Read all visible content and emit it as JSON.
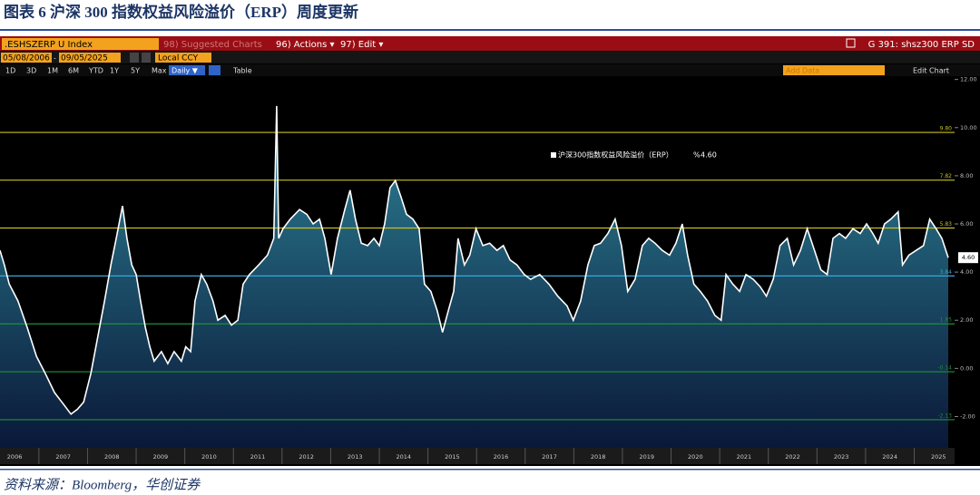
{
  "document": {
    "title": "图表 6  沪深 300 指数权益风险溢价（ERP）周度更新",
    "source": "资料来源：Bloomberg，华创证券"
  },
  "toolbar": {
    "ticker": ".ESHSZERP U Index",
    "suggested": "98) Suggested Charts",
    "actions": "96) Actions ▾",
    "edit": "97) Edit ▾",
    "chart_id": "G 391: shsz300 ERP SD",
    "start_date": "05/08/2006",
    "end_date": "09/05/2025",
    "currency": "Local CCY",
    "periods": [
      "1D",
      "3D",
      "1M",
      "6M",
      "YTD",
      "1Y",
      "5Y",
      "Max"
    ],
    "frequency": "Daily ▼",
    "table": "Table",
    "add_data": "Add Data",
    "edit_chart": "Edit Chart"
  },
  "chart_data": {
    "type": "line",
    "x": [
      2006.2,
      2006.29,
      2006.39,
      2006.57,
      2006.76,
      2006.95,
      2007.13,
      2007.32,
      2007.51,
      2007.66,
      2007.79,
      2007.92,
      2008.07,
      2008.21,
      2008.35,
      2008.48,
      2008.59,
      2008.72,
      2008.81,
      2008.91,
      2009.0,
      2009.09,
      2009.19,
      2009.28,
      2009.37,
      2009.52,
      2009.65,
      2009.78,
      2009.93,
      2010.02,
      2010.12,
      2010.21,
      2010.34,
      2010.45,
      2010.58,
      2010.68,
      2010.83,
      2010.96,
      2011.09,
      2011.2,
      2011.33,
      2011.52,
      2011.7,
      2011.83,
      2011.89,
      2011.93,
      2012.02,
      2012.17,
      2012.36,
      2012.51,
      2012.64,
      2012.77,
      2012.88,
      2013.01,
      2013.14,
      2013.29,
      2013.4,
      2013.51,
      2013.63,
      2013.76,
      2013.89,
      2014.0,
      2014.11,
      2014.22,
      2014.33,
      2014.45,
      2014.56,
      2014.69,
      2014.82,
      2014.93,
      2015.06,
      2015.19,
      2015.3,
      2015.42,
      2015.53,
      2015.62,
      2015.75,
      2015.86,
      2015.99,
      2016.13,
      2016.27,
      2016.42,
      2016.55,
      2016.69,
      2016.83,
      2016.98,
      2017.11,
      2017.3,
      2017.49,
      2017.67,
      2017.86,
      2017.99,
      2018.14,
      2018.29,
      2018.42,
      2018.55,
      2018.7,
      2018.85,
      2018.98,
      2019.11,
      2019.26,
      2019.41,
      2019.54,
      2019.67,
      2019.82,
      2019.97,
      2020.1,
      2020.23,
      2020.34,
      2020.47,
      2020.6,
      2020.75,
      2020.9,
      2021.03,
      2021.13,
      2021.27,
      2021.41,
      2021.54,
      2021.69,
      2021.83,
      2021.96,
      2022.1,
      2022.24,
      2022.39,
      2022.52,
      2022.66,
      2022.8,
      2022.95,
      2023.08,
      2023.21,
      2023.33,
      2023.46,
      2023.59,
      2023.74,
      2023.89,
      2024.02,
      2024.15,
      2024.26,
      2024.39,
      2024.52,
      2024.67,
      2024.76,
      2024.89,
      2025.04,
      2025.19,
      2025.32,
      2025.45,
      2025.57,
      2025.7
    ],
    "series": [
      {
        "name": "沪深300指数权益风险溢价（ERP）",
        "color": "#ffffff",
        "fill_colors": [
          "#2e8599",
          "#0a1838"
        ],
        "values": [
          4.9,
          4.3,
          3.5,
          2.8,
          1.7,
          0.5,
          -0.2,
          -1.0,
          -1.5,
          -1.9,
          -1.7,
          -1.4,
          -0.2,
          1.3,
          2.8,
          4.3,
          5.4,
          6.75,
          5.4,
          4.3,
          3.9,
          2.8,
          1.7,
          0.9,
          0.3,
          0.7,
          0.2,
          0.7,
          0.3,
          0.9,
          0.7,
          2.8,
          3.9,
          3.5,
          2.8,
          2.0,
          2.2,
          1.8,
          2.0,
          3.5,
          3.9,
          4.3,
          4.7,
          5.4,
          10.9,
          5.4,
          5.8,
          6.2,
          6.6,
          6.4,
          6.0,
          6.2,
          5.4,
          3.9,
          5.4,
          6.6,
          7.4,
          6.2,
          5.2,
          5.1,
          5.4,
          5.1,
          6.0,
          7.5,
          7.8,
          7.1,
          6.4,
          6.2,
          5.8,
          3.5,
          3.2,
          2.4,
          1.5,
          2.4,
          3.2,
          5.4,
          4.3,
          4.7,
          5.8,
          5.1,
          5.2,
          4.9,
          5.1,
          4.5,
          4.3,
          3.9,
          3.7,
          3.9,
          3.5,
          3.0,
          2.6,
          2.0,
          2.8,
          4.3,
          5.1,
          5.2,
          5.6,
          6.2,
          5.1,
          3.2,
          3.7,
          5.1,
          5.4,
          5.2,
          4.9,
          4.7,
          5.2,
          6.0,
          4.7,
          3.5,
          3.2,
          2.8,
          2.2,
          2.0,
          3.9,
          3.5,
          3.2,
          3.9,
          3.7,
          3.4,
          3.0,
          3.7,
          5.1,
          5.4,
          4.3,
          4.9,
          5.8,
          4.9,
          4.1,
          3.9,
          5.4,
          5.6,
          5.4,
          5.8,
          5.6,
          6.0,
          5.6,
          5.2,
          6.0,
          6.2,
          6.5,
          4.3,
          4.7,
          4.9,
          5.1,
          6.2,
          5.8,
          5.4,
          4.6
        ]
      }
    ],
    "legend_unit": "%",
    "last_value": {
      "value": 4.6,
      "label": "4.60"
    },
    "reference_lines": [
      {
        "value": 9.8,
        "label": "9.80",
        "color": "#c9bf1e"
      },
      {
        "value": 7.82,
        "color": "#c9bf1e"
      },
      {
        "value": 5.83,
        "color": "#c9bf1e"
      },
      {
        "value": 3.84,
        "color": "#3aa6d6"
      },
      {
        "value": 1.85,
        "color": "#1f8f3c"
      },
      {
        "value": -0.14,
        "color": "#1f8f3c"
      },
      {
        "value": -2.13,
        "color": "#1f8f3c"
      }
    ],
    "xlim": [
      2006.2,
      2025.7
    ],
    "xticks": [
      2006,
      2007,
      2008,
      2009,
      2010,
      2011,
      2012,
      2013,
      2014,
      2015,
      2016,
      2017,
      2018,
      2019,
      2020,
      2021,
      2022,
      2023,
      2024,
      2025
    ],
    "ylim": [
      -3.3,
      12.1
    ],
    "yticks": [
      {
        "value": 12,
        "label": "12.00"
      },
      {
        "value": 10,
        "label": "10.00"
      },
      {
        "value": 8,
        "label": "8.00"
      },
      {
        "value": 6,
        "label": "6.00"
      },
      {
        "value": 4,
        "label": "4.00"
      },
      {
        "value": 2,
        "label": "2.00"
      },
      {
        "value": 0,
        "label": "0.00"
      },
      {
        "value": -2,
        "label": "-2.00"
      }
    ]
  }
}
